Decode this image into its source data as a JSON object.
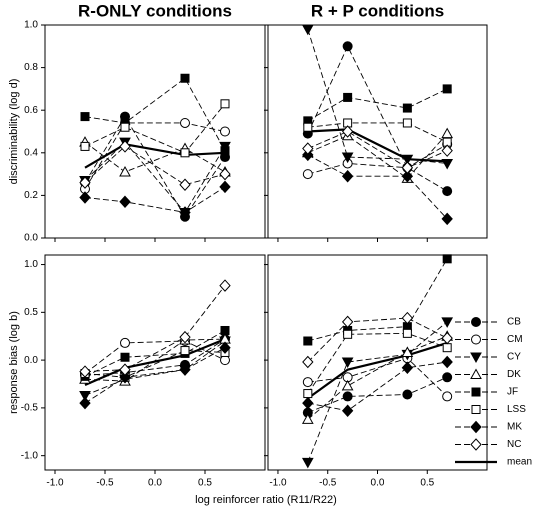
{
  "chart_data": [
    {
      "type": "line",
      "title": "R-ONLY conditions",
      "ylabel": "discriminability (log d)",
      "x": [
        -0.7,
        -0.3,
        0.3,
        0.7
      ],
      "xlim": [
        -1.1,
        1.1
      ],
      "xticks": [
        -1,
        -0.5,
        0,
        0.5
      ],
      "ylim": [
        0,
        1
      ],
      "yticks": [
        {
          "value": 0,
          "label": "0.0"
        },
        0.2,
        0.4,
        0.6,
        0.8,
        {
          "value": 1,
          "label": "1.0"
        }
      ],
      "yticklabels": true,
      "xticklabels": false,
      "series": [
        {
          "color": "#000000",
          "marker": "circle",
          "filled": true,
          "line": "dashed",
          "values": [
            0.26,
            0.57,
            0.1,
            0.38
          ]
        },
        {
          "color": "#000000",
          "marker": "circle",
          "filled": false,
          "line": "dashed",
          "values": [
            0.23,
            0.54,
            0.54,
            0.5
          ]
        },
        {
          "color": "#000000",
          "marker": "triangle-down",
          "filled": true,
          "line": "dashed",
          "values": [
            0.27,
            0.45,
            0.12,
            0.43
          ]
        },
        {
          "color": "#000000",
          "marker": "triangle-up",
          "filled": false,
          "line": "dashed",
          "values": [
            0.45,
            0.31,
            0.42,
            0.31
          ]
        },
        {
          "color": "#000000",
          "marker": "square",
          "filled": true,
          "line": "dashed",
          "values": [
            0.57,
            0.54,
            0.75,
            0.41
          ]
        },
        {
          "color": "#000000",
          "marker": "square",
          "filled": false,
          "line": "dashed",
          "values": [
            0.43,
            0.52,
            0.4,
            0.63
          ]
        },
        {
          "color": "#000000",
          "marker": "diamond",
          "filled": true,
          "line": "dashed",
          "values": [
            0.19,
            0.17,
            0.12,
            0.24
          ]
        },
        {
          "color": "#000000",
          "marker": "diamond",
          "filled": false,
          "line": "dashed",
          "values": [
            0.26,
            0.43,
            0.25,
            0.3
          ]
        },
        {
          "color": "#000000",
          "marker": "none",
          "filled": false,
          "line": "solid",
          "values": [
            0.33,
            0.44,
            0.39,
            0.4
          ]
        }
      ]
    },
    {
      "type": "line",
      "title": "R + P conditions",
      "x": [
        -0.7,
        -0.3,
        0.3,
        0.7
      ],
      "xlim": [
        -1.1,
        1.1
      ],
      "xticks": [
        -1,
        -0.5,
        0,
        0.5
      ],
      "ylim": [
        0,
        1
      ],
      "yticks": [
        0,
        0.2,
        0.4,
        0.6,
        0.8,
        1
      ],
      "yticklabels": false,
      "xticklabels": false,
      "series": [
        {
          "color": "#000000",
          "marker": "circle",
          "filled": true,
          "line": "dashed",
          "values": [
            0.49,
            0.9,
            0.33,
            0.22
          ]
        },
        {
          "color": "#000000",
          "marker": "circle",
          "filled": false,
          "line": "dashed",
          "values": [
            0.3,
            0.35,
            0.33,
            0.44
          ]
        },
        {
          "color": "#000000",
          "marker": "triangle-down",
          "filled": true,
          "line": "dashed",
          "values": [
            0.98,
            0.38,
            0.37,
            0.35
          ]
        },
        {
          "color": "#000000",
          "marker": "triangle-up",
          "filled": false,
          "line": "dashed",
          "values": [
            0.4,
            0.48,
            0.28,
            0.49
          ]
        },
        {
          "color": "#000000",
          "marker": "square",
          "filled": true,
          "line": "dashed",
          "values": [
            0.55,
            0.66,
            0.61,
            0.7
          ]
        },
        {
          "color": "#000000",
          "marker": "square",
          "filled": false,
          "line": "dashed",
          "values": [
            0.52,
            0.54,
            0.54,
            0.45
          ]
        },
        {
          "color": "#000000",
          "marker": "diamond",
          "filled": true,
          "line": "dashed",
          "values": [
            0.39,
            0.29,
            0.29,
            0.09
          ]
        },
        {
          "color": "#000000",
          "marker": "diamond",
          "filled": false,
          "line": "dashed",
          "values": [
            0.42,
            0.5,
            0.33,
            0.41
          ]
        },
        {
          "color": "#000000",
          "marker": "none",
          "filled": false,
          "line": "solid",
          "values": [
            0.5,
            0.51,
            0.37,
            0.36
          ]
        }
      ]
    },
    {
      "type": "line",
      "ylabel": "response bias (log b)",
      "xlabel": "log reinforcer ratio (R11/R22)",
      "x": [
        -0.7,
        -0.3,
        0.3,
        0.7
      ],
      "xlim": [
        -1.1,
        1.1
      ],
      "xticks": [
        {
          "value": -1,
          "label": "-1.0"
        },
        -0.5,
        {
          "value": 0,
          "label": "0.0"
        },
        0.5
      ],
      "ylim": [
        -1.15,
        1.1
      ],
      "yticks": [
        {
          "value": -1,
          "label": "-1.0"
        },
        -0.5,
        {
          "value": 0,
          "label": "0.0"
        },
        0.5,
        {
          "value": 1,
          "label": "1.0"
        }
      ],
      "yticklabels": true,
      "xticklabels": true,
      "series": [
        {
          "color": "#000000",
          "marker": "circle",
          "filled": true,
          "line": "dashed",
          "values": [
            -0.16,
            -0.13,
            -0.05,
            0.22
          ]
        },
        {
          "color": "#000000",
          "marker": "circle",
          "filled": false,
          "line": "dashed",
          "values": [
            -0.14,
            0.18,
            0.2,
            0.0
          ]
        },
        {
          "color": "#000000",
          "marker": "triangle-down",
          "filled": true,
          "line": "dashed",
          "values": [
            -0.37,
            -0.2,
            -0.1,
            0.2
          ]
        },
        {
          "color": "#000000",
          "marker": "triangle-up",
          "filled": false,
          "line": "dashed",
          "values": [
            -0.2,
            -0.22,
            0.21,
            0.22
          ]
        },
        {
          "color": "#000000",
          "marker": "square",
          "filled": true,
          "line": "dashed",
          "values": [
            -0.17,
            0.03,
            0.07,
            0.31
          ]
        },
        {
          "color": "#000000",
          "marker": "square",
          "filled": false,
          "line": "dashed",
          "values": [
            -0.14,
            -0.18,
            0.1,
            0.08
          ]
        },
        {
          "color": "#000000",
          "marker": "diamond",
          "filled": true,
          "line": "dashed",
          "values": [
            -0.45,
            -0.18,
            -0.1,
            0.13
          ]
        },
        {
          "color": "#000000",
          "marker": "diamond",
          "filled": false,
          "line": "dashed",
          "values": [
            -0.12,
            -0.1,
            0.24,
            0.78
          ]
        },
        {
          "color": "#000000",
          "marker": "none",
          "filled": false,
          "line": "solid",
          "values": [
            -0.26,
            -0.08,
            0.05,
            0.22
          ]
        }
      ]
    },
    {
      "type": "line",
      "legend": "right",
      "x": [
        -0.7,
        -0.3,
        0.3,
        0.7
      ],
      "xlim": [
        -1.1,
        1.1
      ],
      "xticks": [
        {
          "value": -1,
          "label": "-1.0"
        },
        -0.5,
        {
          "value": 0,
          "label": "0.0"
        },
        0.5
      ],
      "ylim": [
        -1.15,
        1.1
      ],
      "yticks": [
        -1,
        -0.5,
        0,
        0.5,
        1
      ],
      "yticklabels": false,
      "xticklabels": true,
      "series": [
        {
          "name": "CB",
          "color": "#000000",
          "marker": "circle",
          "filled": true,
          "line": "dashed",
          "values": [
            -0.55,
            -0.38,
            -0.36,
            -0.18
          ]
        },
        {
          "name": "CM",
          "color": "#000000",
          "marker": "circle",
          "filled": false,
          "line": "dashed",
          "values": [
            -0.23,
            -0.18,
            0.02,
            -0.38
          ]
        },
        {
          "name": "CY",
          "color": "#000000",
          "marker": "triangle-down",
          "filled": true,
          "line": "dashed",
          "values": [
            -1.07,
            -0.02,
            0.06,
            0.4
          ]
        },
        {
          "name": "DK",
          "color": "#000000",
          "marker": "triangle-up",
          "filled": false,
          "line": "dashed",
          "values": [
            -0.62,
            -0.27,
            0.08,
            0.25
          ]
        },
        {
          "name": "JF",
          "color": "#000000",
          "marker": "square",
          "filled": true,
          "line": "dashed",
          "values": [
            0.2,
            0.31,
            0.35,
            1.06
          ]
        },
        {
          "name": "LSS",
          "color": "#000000",
          "marker": "square",
          "filled": false,
          "line": "dashed",
          "values": [
            -0.35,
            0.27,
            0.28,
            0.13
          ]
        },
        {
          "name": "MK",
          "color": "#000000",
          "marker": "diamond",
          "filled": true,
          "line": "dashed",
          "values": [
            -0.45,
            -0.53,
            -0.08,
            -0.02
          ]
        },
        {
          "name": "NC",
          "color": "#000000",
          "marker": "diamond",
          "filled": false,
          "line": "dashed",
          "values": [
            -0.02,
            0.4,
            0.44,
            0.23
          ]
        },
        {
          "name": "mean",
          "color": "#000000",
          "marker": "none",
          "filled": false,
          "line": "solid",
          "values": [
            -0.4,
            -0.1,
            0.05,
            0.18
          ]
        }
      ]
    }
  ]
}
